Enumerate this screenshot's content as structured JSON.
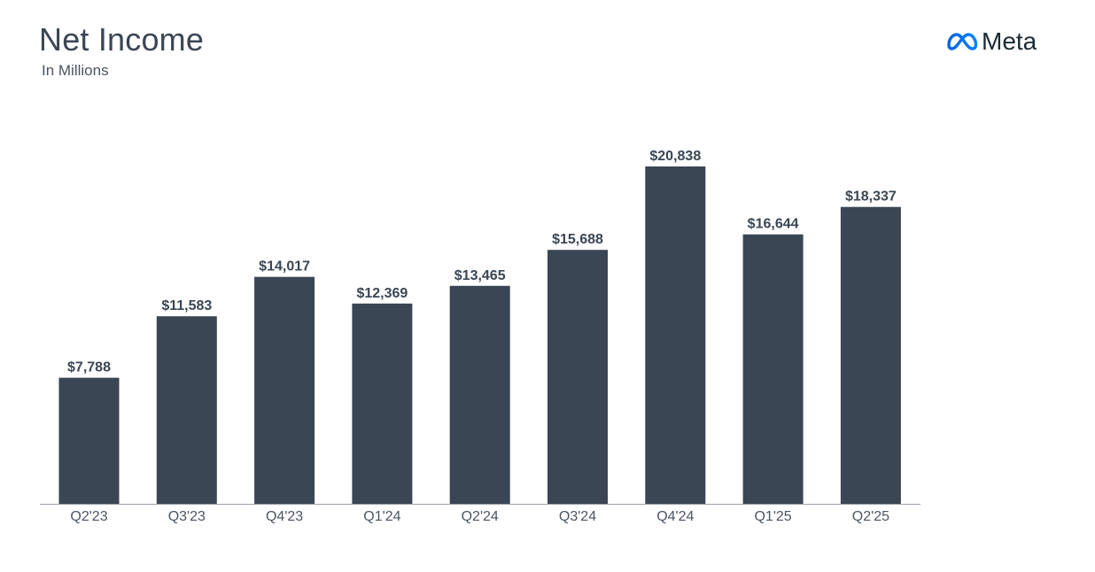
{
  "title": "Net Income",
  "subtitle": "In Millions",
  "brand": {
    "name": "Meta",
    "logo_icon": "meta-infinity-icon",
    "color": "#0866ff"
  },
  "colors": {
    "bar": "#3a4654",
    "text": "#3a4654",
    "axis": "#9aa1a9"
  },
  "chart_data": {
    "type": "bar",
    "title": "Net Income",
    "subtitle": "In Millions",
    "xlabel": "",
    "ylabel": "",
    "categories": [
      "Q2'23",
      "Q3'23",
      "Q4'23",
      "Q1'24",
      "Q2'24",
      "Q3'24",
      "Q4'24",
      "Q1'25",
      "Q2'25"
    ],
    "values": [
      7788,
      11583,
      14017,
      12369,
      13465,
      15688,
      20838,
      16644,
      18337
    ],
    "labels": [
      "$7,788",
      "$11,583",
      "$14,017",
      "$12,369",
      "$13,465",
      "$15,688",
      "$20,838",
      "$16,644",
      "$18,337"
    ],
    "ylim": [
      0,
      20838
    ],
    "grid": false,
    "legend": "none"
  }
}
